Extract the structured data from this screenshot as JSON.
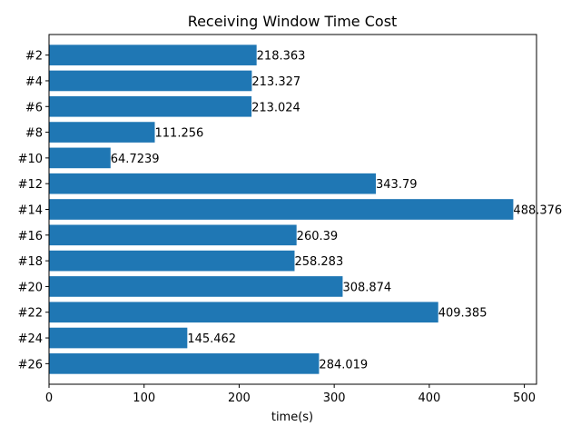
{
  "chart_data": {
    "type": "bar",
    "orientation": "horizontal",
    "title": "Receiving Window Time Cost",
    "xlabel": "time(s)",
    "ylabel": "",
    "categories": [
      "#2",
      "#4",
      "#6",
      "#8",
      "#10",
      "#12",
      "#14",
      "#16",
      "#18",
      "#20",
      "#22",
      "#24",
      "#26"
    ],
    "values": [
      218.363,
      213.327,
      213.024,
      111.256,
      64.7239,
      343.79,
      488.376,
      260.39,
      258.283,
      308.874,
      409.385,
      145.462,
      284.019
    ],
    "value_labels": [
      "218.363",
      "213.327",
      "213.024",
      "111.256",
      "64.7239",
      "343.79",
      "488.376",
      "260.39",
      "258.283",
      "308.874",
      "409.385",
      "145.462",
      "284.019"
    ],
    "xlim": [
      0,
      512.8
    ],
    "xticks": [
      0,
      100,
      200,
      300,
      400,
      500
    ],
    "xtick_labels": [
      "0",
      "100",
      "200",
      "300",
      "400",
      "500"
    ],
    "grid": false,
    "bar_color": "#1f77b4"
  }
}
